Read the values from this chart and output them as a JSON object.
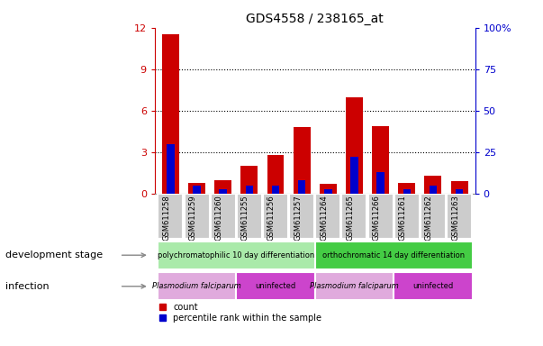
{
  "title": "GDS4558 / 238165_at",
  "samples": [
    "GSM611258",
    "GSM611259",
    "GSM611260",
    "GSM611255",
    "GSM611256",
    "GSM611257",
    "GSM611264",
    "GSM611265",
    "GSM611266",
    "GSM611261",
    "GSM611262",
    "GSM611263"
  ],
  "count_values": [
    11.5,
    0.8,
    1.0,
    2.0,
    2.8,
    4.8,
    0.7,
    7.0,
    4.9,
    0.8,
    1.3,
    0.9
  ],
  "percentile_values": [
    30,
    5,
    3,
    5,
    5,
    8,
    3,
    22,
    13,
    3,
    5,
    3
  ],
  "ylim_left": [
    0,
    12
  ],
  "ylim_right": [
    0,
    100
  ],
  "yticks_left": [
    0,
    3,
    6,
    9,
    12
  ],
  "yticks_right": [
    0,
    25,
    50,
    75,
    100
  ],
  "count_color": "#cc0000",
  "percentile_color": "#0000cc",
  "dev_stage_groups": [
    {
      "label": "polychromatophilic 10 day differentiation",
      "start": 0,
      "end": 6,
      "color": "#aaeaaa"
    },
    {
      "label": "orthochromatic 14 day differentiation",
      "start": 6,
      "end": 12,
      "color": "#44cc44"
    }
  ],
  "infection_groups": [
    {
      "label": "Plasmodium falciparum",
      "start": 0,
      "end": 3,
      "color": "#e0aadd"
    },
    {
      "label": "uninfected",
      "start": 3,
      "end": 6,
      "color": "#cc44cc"
    },
    {
      "label": "Plasmodium falciparum",
      "start": 6,
      "end": 9,
      "color": "#e0aadd"
    },
    {
      "label": "uninfected",
      "start": 9,
      "end": 12,
      "color": "#cc44cc"
    }
  ],
  "legend_count_label": "count",
  "legend_pct_label": "percentile rank within the sample",
  "dev_stage_label": "development stage",
  "infection_label": "infection",
  "right_axis_color": "#0000cc",
  "left_axis_color": "#cc0000",
  "tick_bg_color": "#cccccc",
  "tick_sep_color": "#ffffff"
}
